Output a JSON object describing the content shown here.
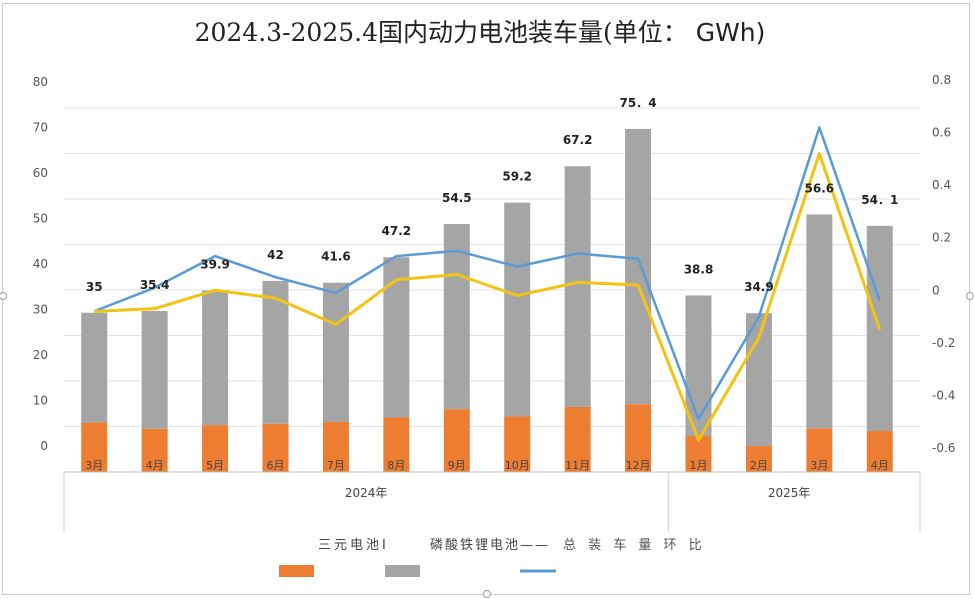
{
  "title_main": "2024.3-2025.4国内动力电池装车量(单位：",
  "title_unit": "GWh)",
  "chart_data": {
    "type": "bar",
    "title": "2024.3-2025.4国内动力电池装车量(单位： GWh)",
    "stacked": true,
    "categories": [
      "3月",
      "4月",
      "5月",
      "6月",
      "7月",
      "8月",
      "9月",
      "10月",
      "11月",
      "12月",
      "1月",
      "2月",
      "3月",
      "4月"
    ],
    "year_groups": [
      {
        "label": "2024年",
        "span": 10
      },
      {
        "label": "2025年",
        "span": 4
      }
    ],
    "series": [
      {
        "name": "三元电池",
        "type": "bar",
        "axis": "left",
        "color": "#ED7D31",
        "values": [
          10.9,
          9.5,
          10.3,
          10.6,
          11.0,
          12.0,
          13.8,
          12.2,
          14.3,
          14.9,
          7.9,
          5.7,
          9.6,
          9.0
        ]
      },
      {
        "name": "磷酸铁锂电池",
        "type": "bar",
        "axis": "left",
        "color": "#A5A5A5",
        "values": [
          24.1,
          25.9,
          29.6,
          31.4,
          30.6,
          35.2,
          40.7,
          47.0,
          52.9,
          60.5,
          30.9,
          29.2,
          47.0,
          45.1
        ]
      },
      {
        "name": "总装车量环比",
        "type": "line",
        "axis": "right",
        "color": "#5B9BD5",
        "values": [
          -0.08,
          0.01,
          0.13,
          0.05,
          -0.01,
          0.13,
          0.15,
          0.09,
          0.14,
          0.12,
          -0.49,
          -0.1,
          0.62,
          -0.04
        ]
      },
      {
        "name": "",
        "type": "line",
        "axis": "right",
        "color": "#F2C314",
        "values": [
          -0.08,
          -0.07,
          0.0,
          -0.03,
          -0.13,
          0.04,
          0.06,
          -0.02,
          0.03,
          0.02,
          -0.57,
          -0.18,
          0.52,
          -0.15
        ]
      }
    ],
    "totals_labels": [
      "35",
      "35.4",
      "39.9",
      "42",
      "41.6",
      "47.2",
      "54.5",
      "59.2",
      "67.2",
      "75．4",
      "38.8",
      "34.9",
      "56.6",
      "54．1"
    ],
    "y_left": {
      "min": 0,
      "max": 80,
      "ticks": [
        "0",
        "10",
        "20",
        "30",
        "40",
        "50",
        "60",
        "70",
        "80"
      ]
    },
    "y_right": {
      "min": -0.6,
      "max": 0.8,
      "ticks": [
        "-0.6",
        "-0.4",
        "-0.2",
        "0",
        "0.2",
        "0.4",
        "0.6",
        "0.8"
      ]
    },
    "grid": true,
    "legend_position": "bottom"
  },
  "legend": {
    "label_1": "三元电池I",
    "label_2": "磷酸铁锂电池——",
    "label_3": "总 装 车 量 环 比"
  }
}
